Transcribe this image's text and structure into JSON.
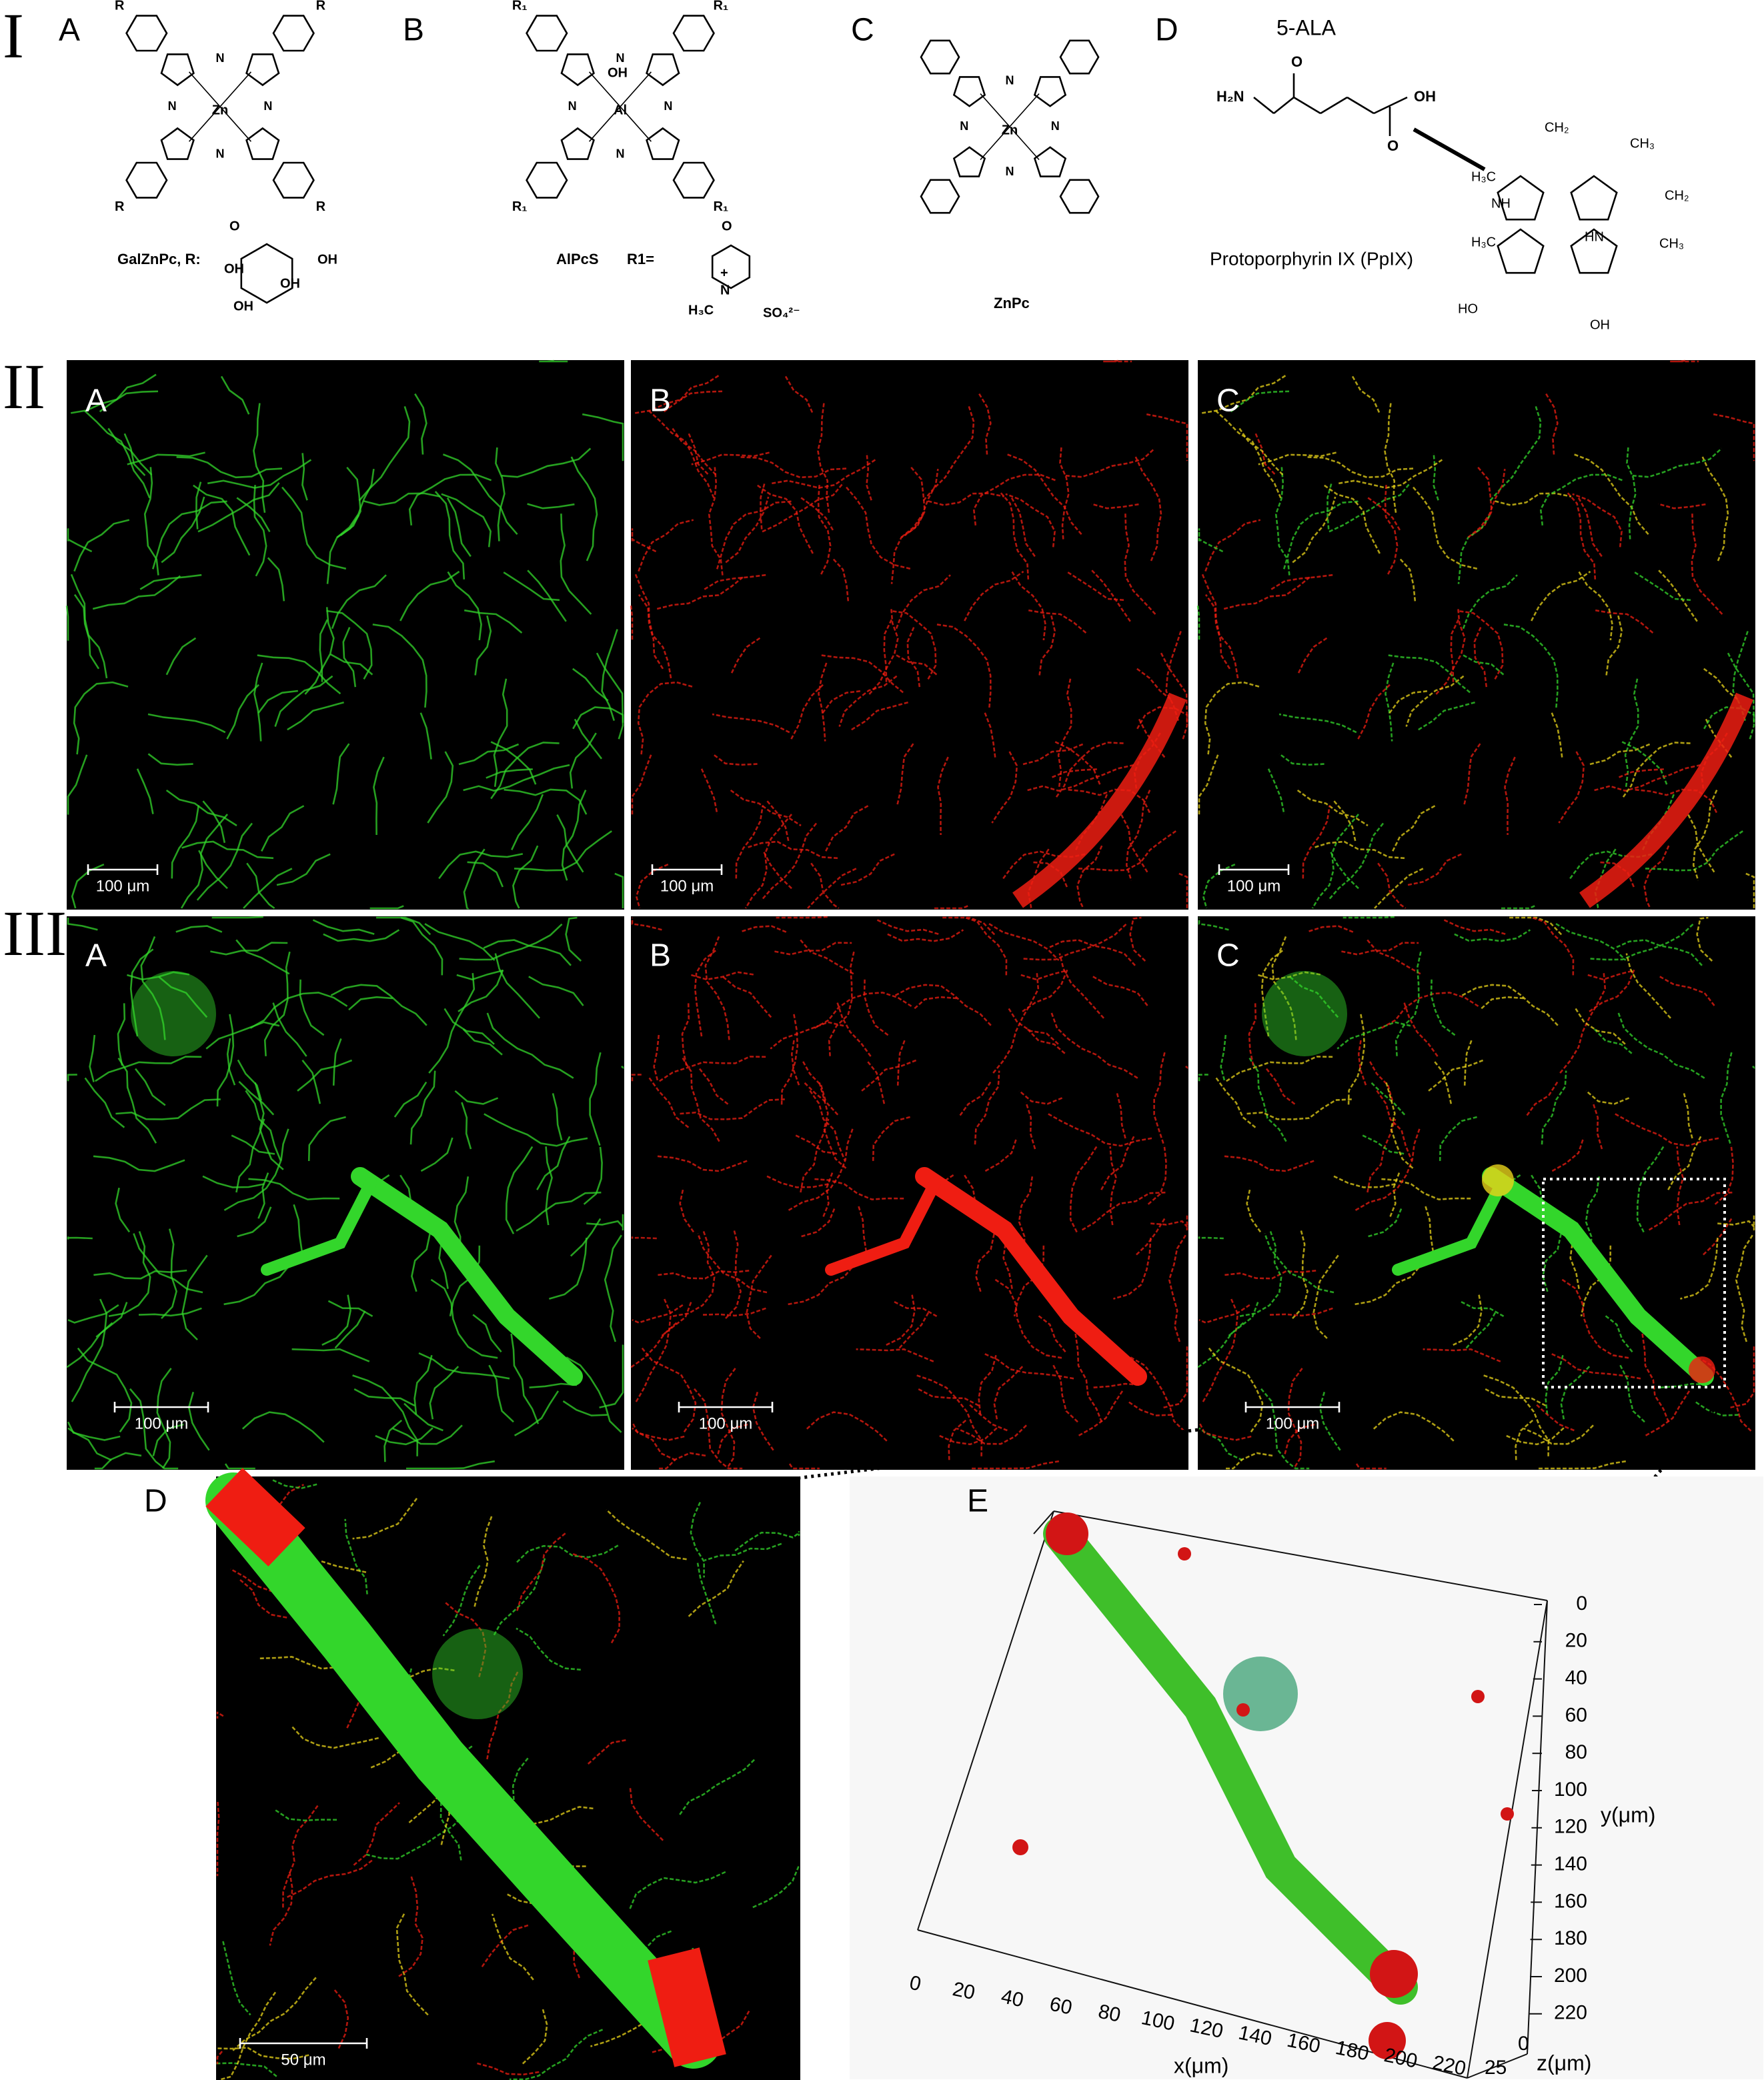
{
  "section_I": {
    "label": "I",
    "A": {
      "letter": "A",
      "center": "Zn",
      "substituent": "R",
      "bridge": "N",
      "caption": "GalZnPc, R:",
      "sugar_labels": [
        "O",
        "OH",
        "OH",
        "OH",
        "OH"
      ]
    },
    "B": {
      "letter": "B",
      "center": "Al",
      "axial": "OH",
      "substituent": "R₁",
      "bridge": "N",
      "caption": "AlPcS",
      "r_def": "R1=",
      "r_labels": [
        "O",
        "N",
        "+",
        "H₃C"
      ],
      "counterion": "SO₄²⁻"
    },
    "C": {
      "letter": "C",
      "center": "Zn",
      "bridge": "N",
      "caption": "ZnPc"
    },
    "D": {
      "letter": "D",
      "ala": "5-ALA",
      "ala_atoms": [
        "H₂N",
        "O",
        "OH"
      ],
      "ppix": "Protoporphyrin IX (PpIX)",
      "ppix_atoms": [
        "NH",
        "HN",
        "CH₃",
        "CH₂",
        "HO",
        "OH",
        "H₃C"
      ]
    }
  },
  "section_II": {
    "label": "II",
    "panels": [
      {
        "letter": "A",
        "scale_bar": "100 μm"
      },
      {
        "letter": "B",
        "scale_bar": "100 μm"
      },
      {
        "letter": "C",
        "scale_bar": "100 μm"
      }
    ]
  },
  "section_III": {
    "label": "III",
    "panels": [
      {
        "letter": "A",
        "scale_bar": "100 μm"
      },
      {
        "letter": "B",
        "scale_bar": "100 μm"
      },
      {
        "letter": "C",
        "scale_bar": "100 μm"
      }
    ],
    "D": {
      "letter": "D",
      "scale_bar": "50 μm"
    },
    "E": {
      "letter": "E",
      "x_label": "x(μm)",
      "y_label": "y(μm)",
      "z_label": "z(μm)",
      "x_ticks": [
        0,
        20,
        40,
        60,
        80,
        100,
        120,
        140,
        160,
        180,
        200,
        220
      ],
      "y_ticks": [
        0,
        20,
        40,
        60,
        80,
        100,
        120,
        140,
        160,
        180,
        200,
        220
      ],
      "z_ticks": [
        0,
        25
      ]
    }
  }
}
